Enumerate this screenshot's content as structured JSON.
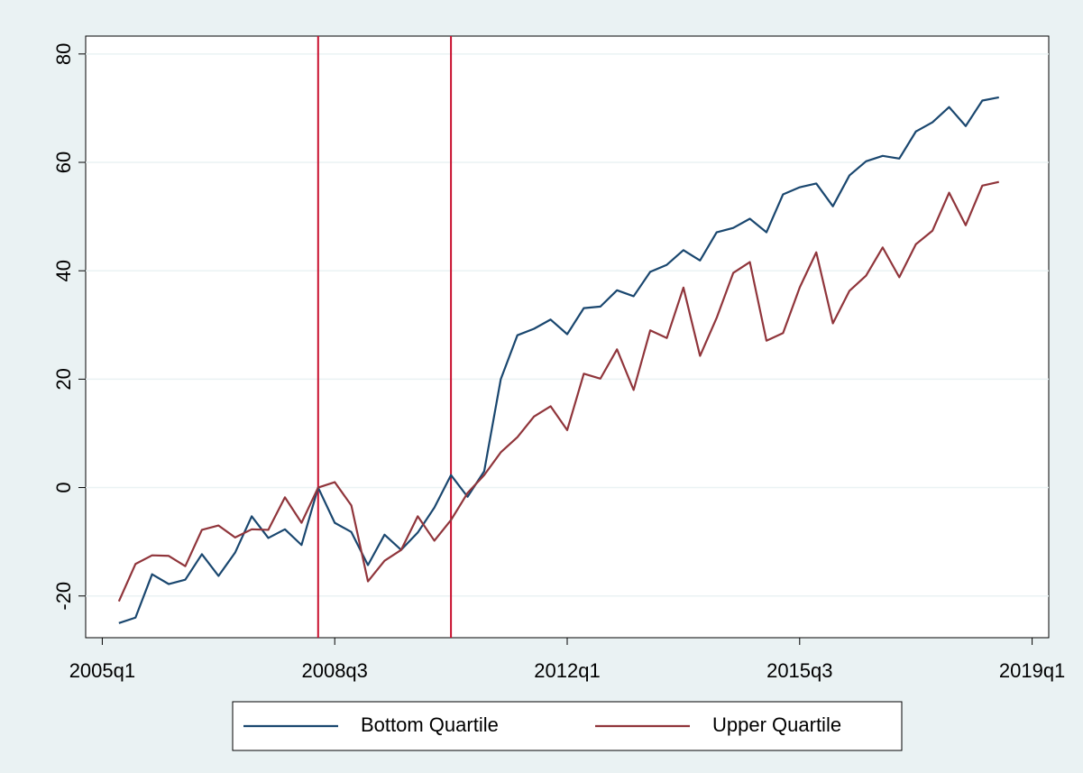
{
  "chart_data": {
    "type": "line",
    "x": [
      181,
      182,
      183,
      184,
      185,
      186,
      187,
      188,
      189,
      190,
      191,
      192,
      193,
      194,
      195,
      196,
      197,
      198,
      199,
      200,
      201,
      202,
      203,
      204,
      205,
      206,
      207,
      208,
      209,
      210,
      211,
      212,
      213,
      214,
      215,
      216,
      217,
      218,
      219,
      220,
      221,
      222,
      223,
      224,
      225,
      226,
      227,
      228,
      229,
      230,
      231,
      232,
      233,
      234
    ],
    "series": [
      {
        "name": "Bottom Quartile",
        "color": "#1a476f",
        "values": [
          -25,
          -24,
          -16,
          -17.8,
          -17,
          -12.3,
          -16.3,
          -12,
          -5.3,
          -9.3,
          -7.7,
          -10.6,
          0,
          -6.5,
          -8.2,
          -14.3,
          -8.7,
          -11.5,
          -8.3,
          -3.7,
          2.3,
          -1.7,
          3,
          20,
          28.1,
          29.3,
          31,
          28.3,
          33.1,
          33.4,
          36.4,
          35.3,
          39.8,
          41.1,
          43.8,
          41.9,
          47.1,
          47.9,
          49.6,
          47.1,
          54.1,
          55.4,
          56.1,
          51.9,
          57.6,
          60.2,
          61.2,
          60.7,
          65.7,
          67.4,
          70.2,
          66.7,
          71.4,
          72
        ]
      },
      {
        "name": "Upper Quartile",
        "color": "#90353b",
        "values": [
          -21,
          -14.1,
          -12.5,
          -12.6,
          -14.5,
          -7.8,
          -7,
          -9.2,
          -7.7,
          -7.8,
          -1.8,
          -6.5,
          0,
          1,
          -3.3,
          -17.3,
          -13.5,
          -11.5,
          -5.3,
          -9.8,
          -6,
          -1,
          2.3,
          6.5,
          9.3,
          13.1,
          15,
          10.6,
          21,
          20.1,
          25.5,
          18,
          29,
          27.6,
          36.9,
          24.3,
          31.3,
          39.6,
          41.6,
          27.1,
          28.5,
          36.9,
          43.4,
          30.3,
          36.3,
          39.1,
          44.3,
          38.8,
          44.9,
          47.4,
          54.4,
          48.4,
          55.7,
          56.4
        ]
      }
    ],
    "vlines": [
      193,
      201
    ],
    "vline_color": "#c8102e",
    "xlim": [
      179,
      237
    ],
    "xticks": [
      {
        "value": 180,
        "label": "2005q1"
      },
      {
        "value": 194,
        "label": "2008q3"
      },
      {
        "value": 208,
        "label": "2012q1"
      },
      {
        "value": 222,
        "label": "2015q3"
      },
      {
        "value": 236,
        "label": "2019q1"
      }
    ],
    "ylim": [
      -27.7,
      83.3
    ],
    "yticks": [
      -20,
      0,
      20,
      40,
      60,
      80
    ],
    "grid": true,
    "legend": "bottom"
  }
}
